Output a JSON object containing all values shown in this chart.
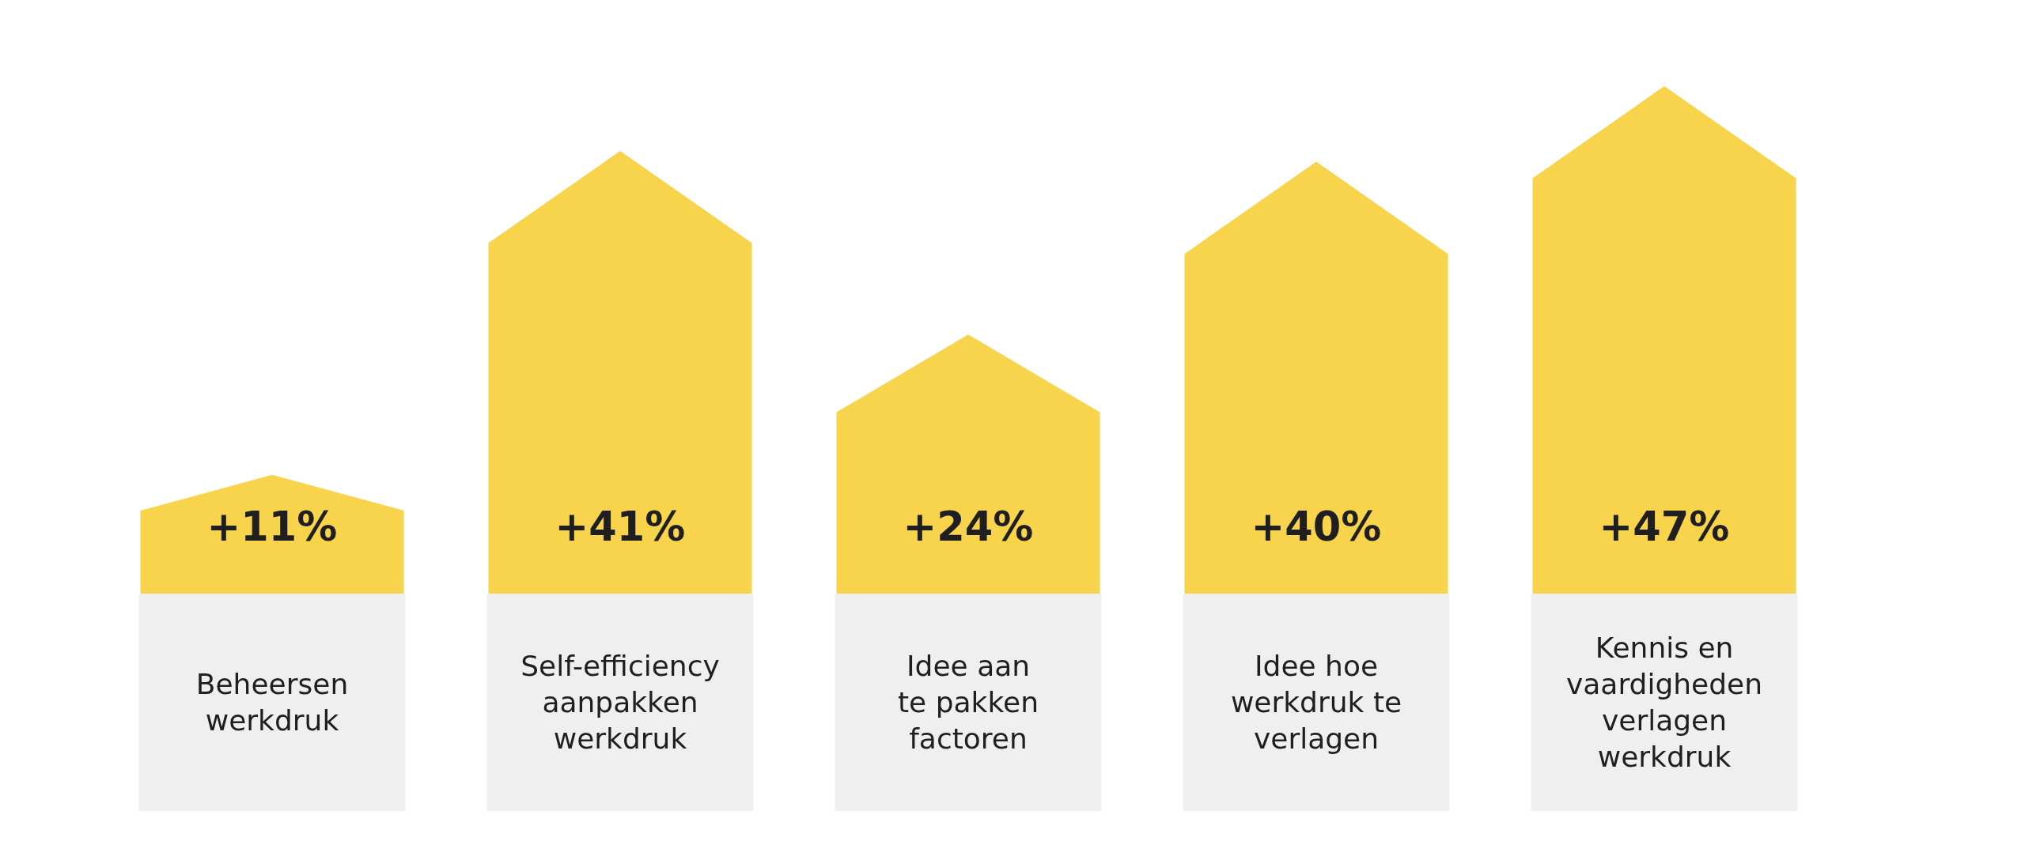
{
  "chart_data": {
    "type": "bar",
    "categories": [
      "Beheersen\nwerkdruk",
      "Self-efficiency\naanpakken\nwerkdruk",
      "Idee aan\nte pakken\nfactoren",
      "Idee hoe\nwerkdruk te\nverlagen",
      "Kennis en\nvaardigheden\nverlagen\nwerkdruk"
    ],
    "values": [
      11,
      41,
      24,
      40,
      47
    ],
    "value_labels": [
      "+11%",
      "+41%",
      "+24%",
      "+40%",
      "+47%"
    ],
    "color": "#f7d44c",
    "tick_labels": "x"
  }
}
